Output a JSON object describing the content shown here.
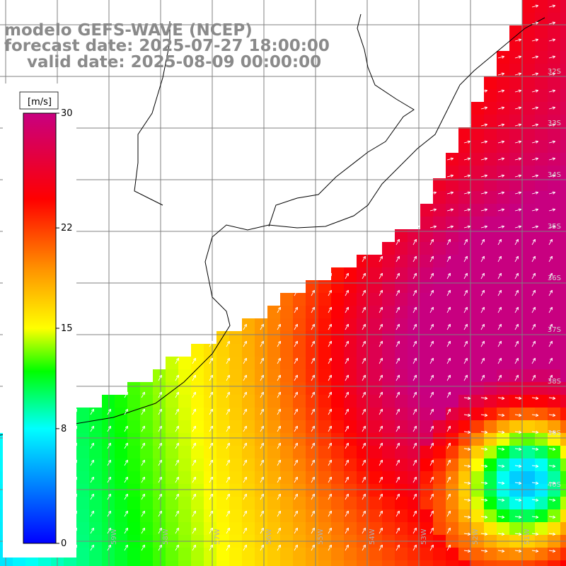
{
  "title": {
    "line1": "modelo GEFS-WAVE (NCEP)",
    "line2": "forecast date: 2025-07-27 18:00:00",
    "line3": "    valid date: 2025-08-09 00:00:00"
  },
  "colorbar": {
    "unit": "[m/s]",
    "ticks": [
      "30",
      "22",
      "15",
      "8",
      "0"
    ],
    "tick_values": [
      30,
      22,
      15,
      8,
      0
    ],
    "range": [
      0,
      30
    ],
    "colors": [
      "#0000ff",
      "#00ffff",
      "#00ff00",
      "#ffff00",
      "#ff8000",
      "#ff0000",
      "#cc0080"
    ]
  },
  "map": {
    "lon_labels": [
      "61W",
      "60W",
      "59W",
      "58W",
      "57W",
      "56W",
      "55W",
      "54W",
      "53W",
      "52W",
      "51W"
    ],
    "lat_labels": [
      "32S",
      "33S",
      "34S",
      "35S",
      "36S",
      "37S",
      "38S",
      "39S",
      "40S"
    ],
    "land_color": "#ffffff",
    "grid_color": "#808080",
    "coast_color": "#000000",
    "arrow_color": "#ffffff"
  }
}
